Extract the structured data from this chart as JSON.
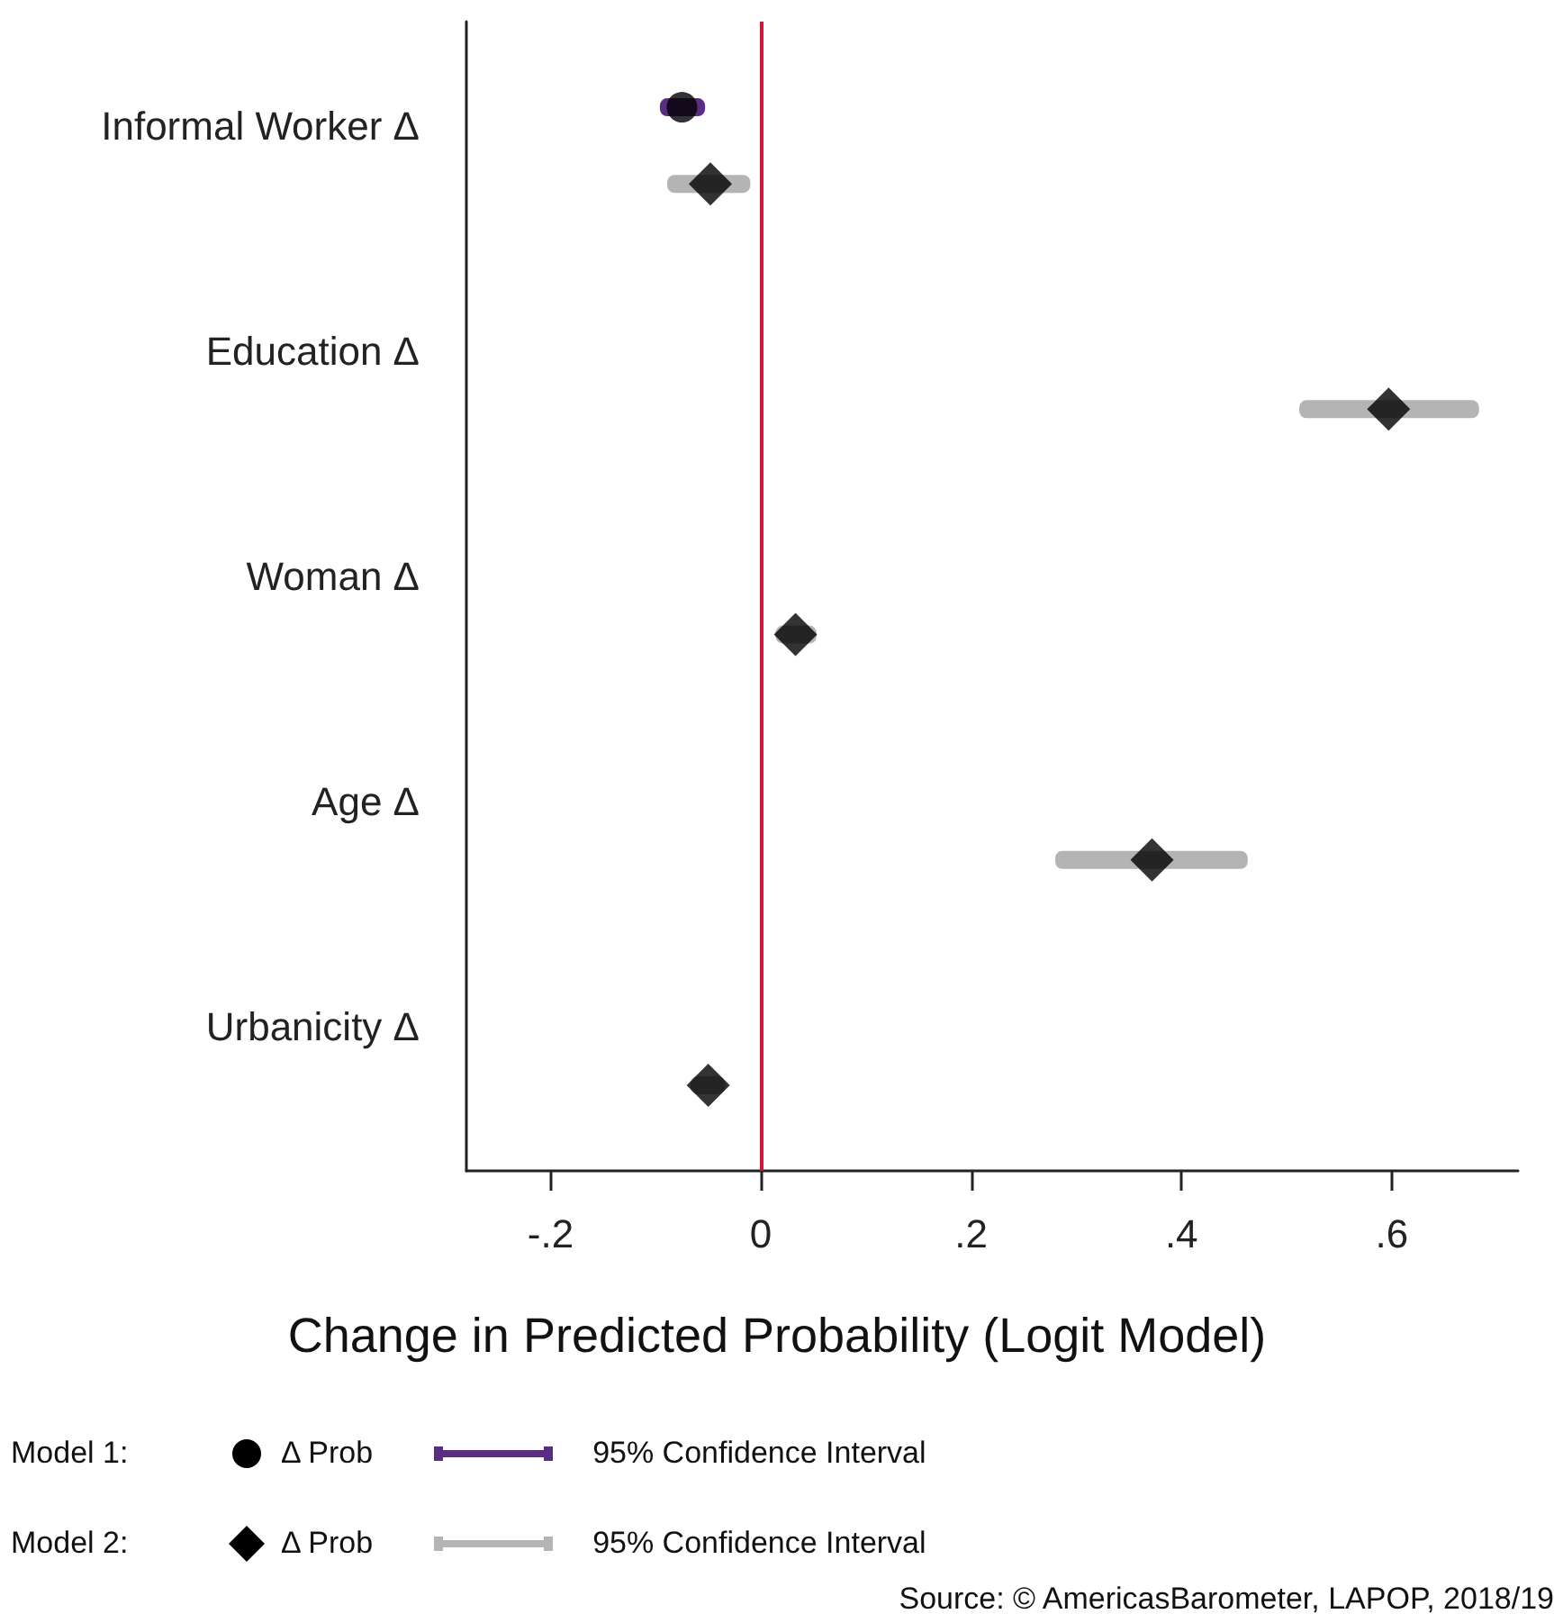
{
  "chart_data": {
    "type": "scatter",
    "orientation": "horizontal",
    "xlabel": "Change in Predicted Probability (Logit Model)",
    "categories": [
      "Informal Worker Δ",
      "Education Δ",
      "Woman Δ",
      "Age Δ",
      "Urbanicity Δ"
    ],
    "series": [
      {
        "name": "Δ Prob",
        "marker": "circle",
        "color": "#000000",
        "values": [
          -0.075,
          null,
          null,
          null,
          null
        ]
      },
      {
        "name": "95% Confidence Interval",
        "type": "bar",
        "color": "#5a2d82",
        "base": [
          -0.096,
          null,
          null,
          null,
          null
        ],
        "values": [
          0.043,
          null,
          null,
          null,
          null
        ]
      },
      {
        "name": "Δ Prob",
        "marker": "diamond",
        "color": "#000000",
        "values": [
          -0.048,
          0.597,
          0.033,
          0.372,
          -0.05
        ]
      },
      {
        "name": "95% Confidence Interval",
        "type": "bar",
        "color": "#b4b4b4",
        "base": [
          -0.089,
          0.512,
          0.014,
          0.28,
          -0.067
        ],
        "values": [
          0.079,
          0.171,
          0.039,
          0.183,
          0.033
        ]
      }
    ],
    "xlim": [
      -0.28,
      0.72
    ],
    "xticks": [
      {
        "value": -0.2,
        "label": "-.2"
      },
      0,
      {
        "value": 0.2,
        "label": ".2"
      },
      {
        "value": 0.4,
        "label": ".4"
      },
      {
        "value": 0.6,
        "label": ".6"
      }
    ],
    "ref_lines": [
      {
        "axis": "x",
        "value": 0,
        "color": "#d2143c"
      }
    ],
    "grid": false,
    "legend": "bottom",
    "annotations": [
      "Model 1:",
      "Model 2:",
      "Source: © AmericasBarometer, LAPOP, 2018/19"
    ]
  }
}
